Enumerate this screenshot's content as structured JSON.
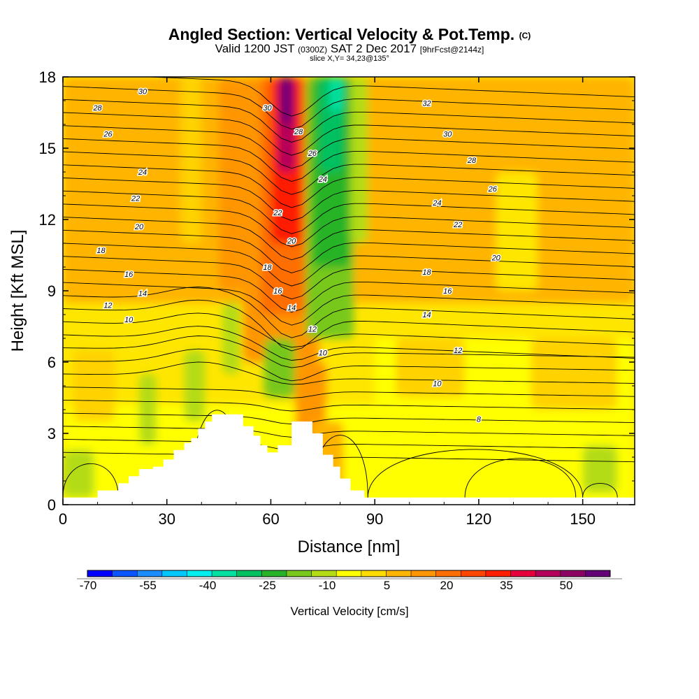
{
  "header": {
    "title": "Angled Section: Vertical Velocity & Pot.Temp.",
    "title_suffix": "(C)",
    "valid_prefix": "Valid 1200 JST",
    "valid_zulu": "(0300Z)",
    "valid_date": "SAT 2 Dec 2017",
    "forecast": "[9hrFcst@2144z]",
    "slice": "slice X,Y= 34,23@135°"
  },
  "chart_data": {
    "type": "heatmap",
    "xlabel": "Distance [nm]",
    "ylabel": "Height [Kft MSL]",
    "xlim": [
      0,
      165
    ],
    "ylim": [
      0,
      18
    ],
    "x_ticks": [
      "0",
      "30",
      "60",
      "90",
      "120",
      "150"
    ],
    "y_ticks": [
      "0",
      "3",
      "6",
      "9",
      "12",
      "15",
      "18"
    ],
    "colorbar": {
      "title": "Vertical Velocity [cm/s]",
      "tick_labels": [
        "-70",
        "-55",
        "-40",
        "-25",
        "-10",
        "5",
        "20",
        "35",
        "50"
      ],
      "colors": [
        "#0000ff",
        "#0a55ff",
        "#1a8cff",
        "#00c8ff",
        "#00eeee",
        "#00e0a0",
        "#00c060",
        "#28b428",
        "#78c81e",
        "#b4dc14",
        "#ffff00",
        "#ffdc00",
        "#ffb400",
        "#ff9600",
        "#ff6e00",
        "#ff4600",
        "#ff1e00",
        "#e6003c",
        "#b4005a",
        "#8c0064",
        "#640078"
      ]
    },
    "contour_field": "Potential Temperature (C)",
    "contour_labels": [
      {
        "x": 23,
        "y": 17.4,
        "text": "30"
      },
      {
        "x": 10,
        "y": 16.7,
        "text": "28"
      },
      {
        "x": 13,
        "y": 15.6,
        "text": "26"
      },
      {
        "x": 23,
        "y": 14.0,
        "text": "24"
      },
      {
        "x": 21,
        "y": 12.9,
        "text": "22"
      },
      {
        "x": 22,
        "y": 11.7,
        "text": "20"
      },
      {
        "x": 11,
        "y": 10.7,
        "text": "18"
      },
      {
        "x": 19,
        "y": 9.7,
        "text": "16"
      },
      {
        "x": 23,
        "y": 8.9,
        "text": "14"
      },
      {
        "x": 13,
        "y": 8.4,
        "text": "12"
      },
      {
        "x": 19,
        "y": 7.8,
        "text": "10"
      },
      {
        "x": 59,
        "y": 16.7,
        "text": "30"
      },
      {
        "x": 68,
        "y": 15.7,
        "text": "28"
      },
      {
        "x": 72,
        "y": 14.8,
        "text": "26"
      },
      {
        "x": 75,
        "y": 13.7,
        "text": "24"
      },
      {
        "x": 62,
        "y": 12.3,
        "text": "22"
      },
      {
        "x": 66,
        "y": 11.1,
        "text": "20"
      },
      {
        "x": 59,
        "y": 10.0,
        "text": "18"
      },
      {
        "x": 62,
        "y": 9.0,
        "text": "16"
      },
      {
        "x": 66,
        "y": 8.3,
        "text": "14"
      },
      {
        "x": 72,
        "y": 7.4,
        "text": "12"
      },
      {
        "x": 75,
        "y": 6.4,
        "text": "10"
      },
      {
        "x": 105,
        "y": 16.9,
        "text": "32"
      },
      {
        "x": 111,
        "y": 15.6,
        "text": "30"
      },
      {
        "x": 118,
        "y": 14.5,
        "text": "28"
      },
      {
        "x": 124,
        "y": 13.3,
        "text": "26"
      },
      {
        "x": 108,
        "y": 12.7,
        "text": "24"
      },
      {
        "x": 114,
        "y": 11.8,
        "text": "22"
      },
      {
        "x": 125,
        "y": 10.4,
        "text": "20"
      },
      {
        "x": 105,
        "y": 9.8,
        "text": "18"
      },
      {
        "x": 111,
        "y": 9.0,
        "text": "16"
      },
      {
        "x": 105,
        "y": 8.0,
        "text": "14"
      },
      {
        "x": 114,
        "y": 6.5,
        "text": "12"
      },
      {
        "x": 108,
        "y": 5.1,
        "text": "10"
      },
      {
        "x": 120,
        "y": 3.6,
        "text": "8"
      }
    ],
    "terrain_profile": [
      {
        "x": 0,
        "h": 0.3
      },
      {
        "x": 10,
        "h": 0.6
      },
      {
        "x": 16,
        "h": 0.9
      },
      {
        "x": 19,
        "h": 1.2
      },
      {
        "x": 22,
        "h": 1.5
      },
      {
        "x": 26,
        "h": 1.6
      },
      {
        "x": 29,
        "h": 1.9
      },
      {
        "x": 32,
        "h": 2.3
      },
      {
        "x": 35,
        "h": 2.6
      },
      {
        "x": 37,
        "h": 2.8
      },
      {
        "x": 39,
        "h": 3.2
      },
      {
        "x": 41,
        "h": 3.5
      },
      {
        "x": 43,
        "h": 3.8
      },
      {
        "x": 52,
        "h": 3.3
      },
      {
        "x": 55,
        "h": 2.9
      },
      {
        "x": 57,
        "h": 2.5
      },
      {
        "x": 59,
        "h": 2.2
      },
      {
        "x": 62,
        "h": 2.5
      },
      {
        "x": 66,
        "h": 3.5
      },
      {
        "x": 72,
        "h": 3.0
      },
      {
        "x": 75,
        "h": 2.1
      },
      {
        "x": 78,
        "h": 1.6
      },
      {
        "x": 80,
        "h": 1.1
      },
      {
        "x": 83,
        "h": 0.6
      },
      {
        "x": 87,
        "h": 0.3
      },
      {
        "x": 165,
        "h": 0.3
      }
    ]
  }
}
